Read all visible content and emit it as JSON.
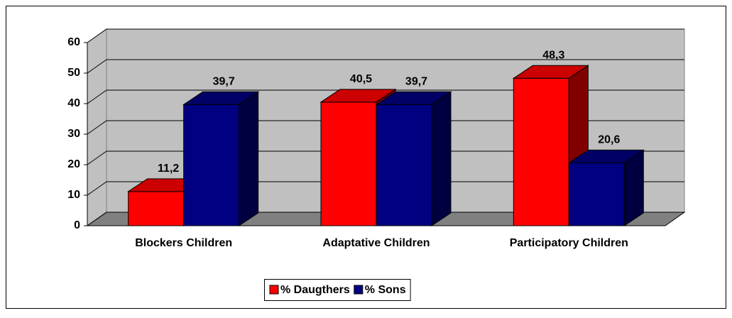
{
  "chart_data": {
    "type": "bar3d",
    "categories": [
      "Blockers Children",
      "Adaptative Children",
      "Participatory Children"
    ],
    "series": [
      {
        "name": "% Daugthers",
        "color": "#ff0000",
        "values": [
          11.2,
          40.5,
          48.3
        ],
        "value_labels": [
          "11,2",
          "40,5",
          "48,3"
        ]
      },
      {
        "name": "% Sons",
        "color": "#000080",
        "values": [
          39.7,
          39.7,
          20.6
        ],
        "value_labels": [
          "39,7",
          "39,7",
          "20,6"
        ]
      }
    ],
    "ylim": [
      0,
      60
    ],
    "yticks": [
      0,
      10,
      20,
      30,
      40,
      50,
      60
    ],
    "grid": true,
    "legend": "bottom"
  }
}
